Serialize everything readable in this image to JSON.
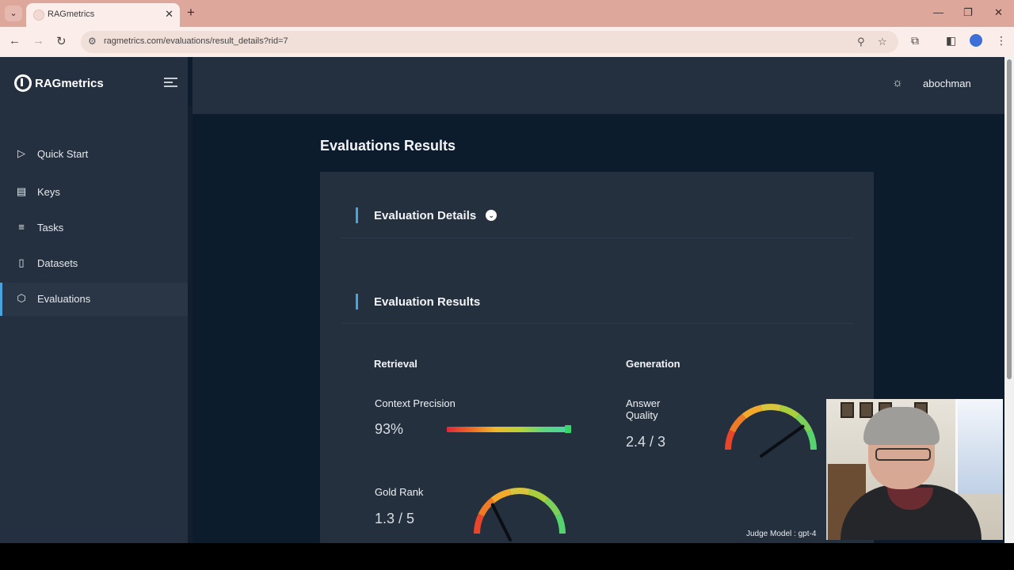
{
  "browser": {
    "tab_title": "RAGmetrics",
    "url": "ragmetrics.com/evaluations/result_details?rid=7"
  },
  "app": {
    "logo_text": "RAGmetrics",
    "username": "abochman",
    "nav": [
      {
        "label": "Quick Start",
        "icon": "play-icon",
        "active": false
      },
      {
        "label": "Keys",
        "icon": "document-icon",
        "active": false
      },
      {
        "label": "Tasks",
        "icon": "list-icon",
        "active": false
      },
      {
        "label": "Datasets",
        "icon": "file-icon",
        "active": false
      },
      {
        "label": "Evaluations",
        "icon": "cube-icon",
        "active": true
      }
    ],
    "page_title": "Evaluations Results",
    "sections": {
      "details_title": "Evaluation Details",
      "results_title": "Evaluation Results"
    },
    "retrieval": {
      "title": "Retrieval",
      "context_precision": {
        "label": "Context Precision",
        "value": "93%",
        "fraction": 0.93
      },
      "gold_rank": {
        "label": "Gold Rank",
        "value": "1.3 / 5",
        "score": 1.3,
        "max": 5
      }
    },
    "generation": {
      "title": "Generation",
      "answer_quality": {
        "label": "Answer\nQuality",
        "value": "2.4 / 3",
        "score": 2.4,
        "max": 3
      },
      "judge_model": "Judge Model : gpt-4"
    }
  },
  "colors": {
    "accent": "#4aa3df",
    "sidebar_bg": "#24303f",
    "page_bg": "#0c1c2c",
    "card_bg": "#25303f"
  }
}
